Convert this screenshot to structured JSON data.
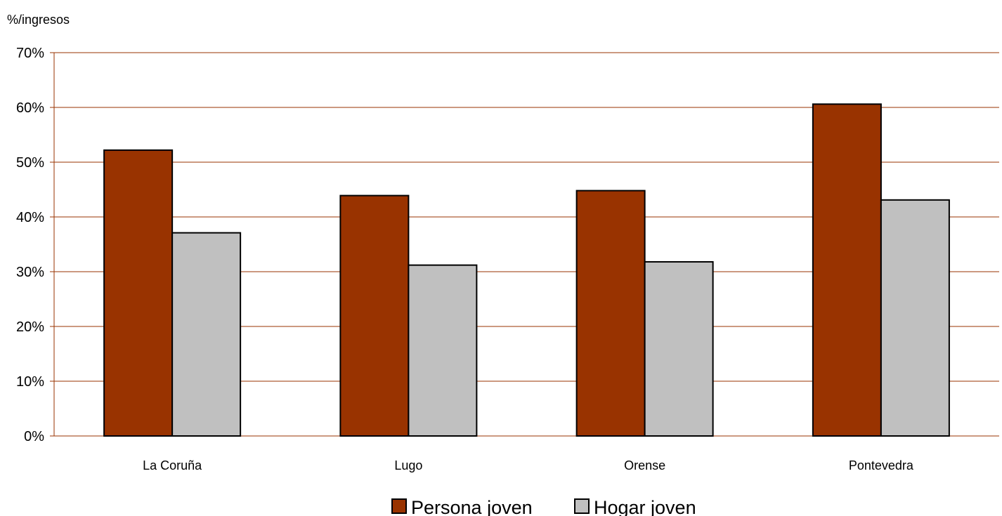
{
  "chart_data": {
    "type": "bar",
    "title": "",
    "ylabel": "%/ingresos",
    "xlabel": "",
    "categories": [
      "La Coruña",
      "Lugo",
      "Orense",
      "Pontevedra"
    ],
    "series": [
      {
        "name": "Persona joven",
        "values": [
          52.2,
          43.9,
          44.8,
          60.6
        ],
        "color": "#993300"
      },
      {
        "name": "Hogar joven",
        "values": [
          37.1,
          31.2,
          31.8,
          43.1
        ],
        "color": "#c0c0c0"
      }
    ],
    "ylim": [
      0,
      70
    ],
    "yticks": [
      0,
      10,
      20,
      30,
      40,
      50,
      60,
      70
    ],
    "ytick_labels": [
      "0%",
      "10%",
      "20%",
      "30%",
      "40%",
      "50%",
      "60%",
      "70%"
    ],
    "grid": true,
    "grid_color": "#993300",
    "legend_position": "bottom"
  }
}
